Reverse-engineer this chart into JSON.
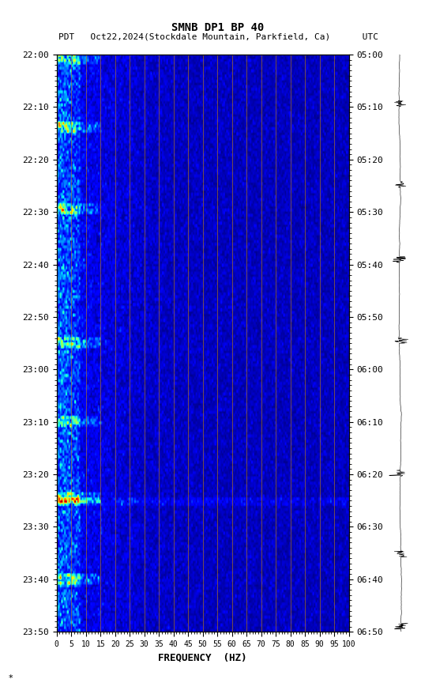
{
  "title_line1": "SMNB DP1 BP 40",
  "title_line2": "PDT   Oct22,2024(Stockdale Mountain, Parkfield, Ca)      UTC",
  "xlabel": "FREQUENCY  (HZ)",
  "freq_ticks": [
    0,
    5,
    10,
    15,
    20,
    25,
    30,
    35,
    40,
    45,
    50,
    55,
    60,
    65,
    70,
    75,
    80,
    85,
    90,
    95,
    100
  ],
  "freq_vlines": [
    5,
    10,
    15,
    20,
    25,
    30,
    35,
    40,
    45,
    50,
    55,
    60,
    65,
    70,
    75,
    80,
    85,
    90,
    95,
    100
  ],
  "time_ticks_pdt": [
    "22:00",
    "22:10",
    "22:20",
    "22:30",
    "22:40",
    "22:50",
    "23:00",
    "23:10",
    "23:20",
    "23:30",
    "23:40",
    "23:50"
  ],
  "time_ticks_utc": [
    "05:00",
    "05:10",
    "05:20",
    "05:30",
    "05:40",
    "05:50",
    "06:00",
    "06:10",
    "06:20",
    "06:30",
    "06:40",
    "06:50"
  ],
  "fig_bg": "#ffffff",
  "vline_color": "#cc8800",
  "colormap": "jet"
}
